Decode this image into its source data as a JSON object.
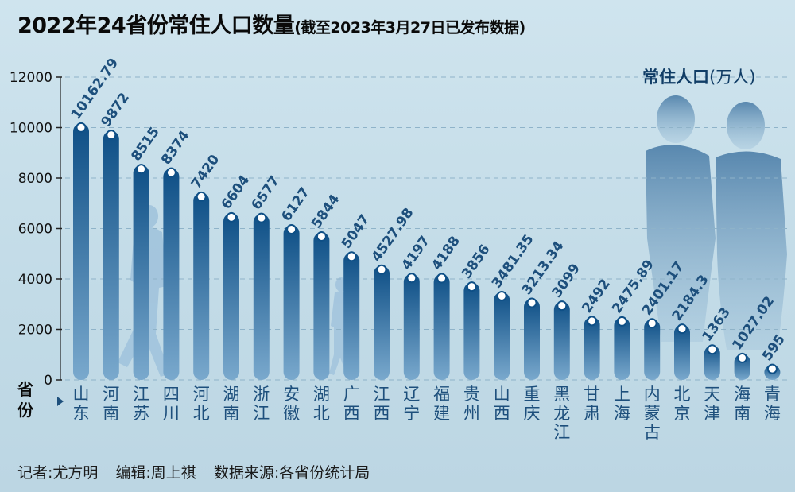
{
  "header": {
    "title": "2022年24省份常住人口数量",
    "subtitle": "(截至2023年3月27日已发布数据)"
  },
  "unit_label": {
    "main": "常住人口",
    "unit": "(万人)"
  },
  "province_axis_label": "省份",
  "footer": {
    "reporter": "记者:尤方明",
    "editor": "编辑:周上祺",
    "source": "数据来源:各省份统计局"
  },
  "colors": {
    "bar_top": "#0e4f86",
    "bar_bottom": "#6a9ec6",
    "label": "#1d4f7c",
    "text": "#0a0a0a"
  },
  "chart_data": {
    "type": "bar",
    "title": "2022年24省份常住人口数量",
    "subtitle": "(截至2023年3月27日已发布数据)",
    "xlabel": "省份",
    "ylabel": "常住人口(万人)",
    "ylim": [
      0,
      12000
    ],
    "yticks": [
      "0",
      "2000",
      "4000",
      "6000",
      "8000",
      "10000",
      "12000"
    ],
    "grid": true,
    "categories": [
      "山东",
      "河南",
      "江苏",
      "四川",
      "河北",
      "湖南",
      "浙江",
      "安徽",
      "湖北",
      "广西",
      "江西",
      "辽宁",
      "福建",
      "贵州",
      "山西",
      "重庆",
      "黑龙江",
      "甘肃",
      "上海",
      "内蒙古",
      "北京",
      "天津",
      "海南",
      "青海"
    ],
    "values": [
      10162.79,
      9872,
      8515,
      8374,
      7420,
      6604,
      6577,
      6127,
      5844,
      5047,
      4527.98,
      4197,
      4188,
      3856,
      3481.35,
      3213.34,
      3099,
      2492,
      2475.89,
      2401.17,
      2184.3,
      1363,
      1027.02,
      595
    ],
    "value_labels": [
      "10162.79",
      "9872",
      "8515",
      "8374",
      "7420",
      "6604",
      "6577",
      "6127",
      "5844",
      "5047",
      "4527.98",
      "4197",
      "4188",
      "3856",
      "3481.35",
      "3213.34",
      "3099",
      "2492",
      "2475.89",
      "2401.17",
      "2184.3",
      "1363",
      "1027.02",
      "595"
    ]
  }
}
